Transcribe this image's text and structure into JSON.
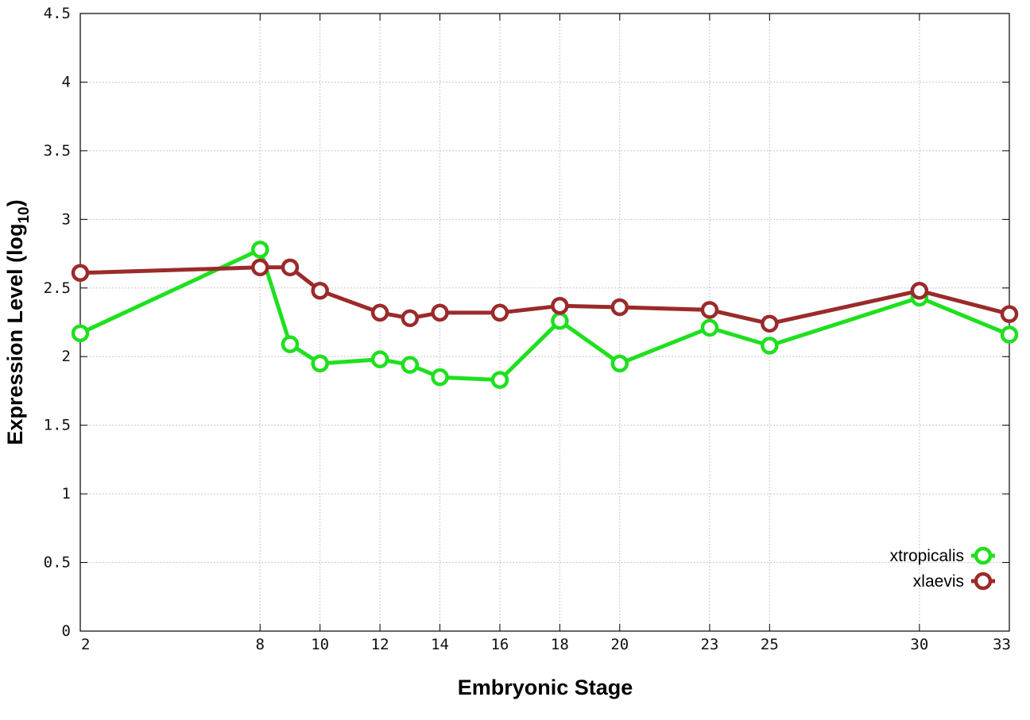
{
  "chart_data": {
    "type": "line",
    "xlabel": "Embryonic Stage",
    "ylabel_main": "Expression Level (log",
    "ylabel_sub": "10",
    "ylabel_close": ")",
    "x": [
      2,
      8,
      9,
      10,
      12,
      13,
      14,
      16,
      18,
      20,
      23,
      25,
      30,
      33
    ],
    "x_ticks": [
      2,
      8,
      10,
      12,
      14,
      16,
      18,
      20,
      23,
      25,
      30,
      33
    ],
    "xlim": [
      2,
      33
    ],
    "ylim": [
      0,
      4.5
    ],
    "y_ticks": [
      "0",
      "0.5",
      "1",
      "1.5",
      "2",
      "2.5",
      "3",
      "3.5",
      "4",
      "4.5"
    ],
    "grid": true,
    "legend_position": "bottom-right",
    "series": [
      {
        "name": "xtropicalis",
        "color": "#1ee01e",
        "values": [
          2.17,
          2.78,
          2.09,
          1.95,
          1.98,
          1.94,
          1.85,
          1.83,
          2.26,
          1.95,
          2.21,
          2.08,
          2.43,
          2.16
        ]
      },
      {
        "name": "xlaevis",
        "color": "#9b2a2a",
        "values": [
          2.61,
          2.65,
          2.65,
          2.48,
          2.32,
          2.28,
          2.32,
          2.32,
          2.37,
          2.36,
          2.34,
          2.24,
          2.48,
          2.31
        ]
      }
    ]
  }
}
